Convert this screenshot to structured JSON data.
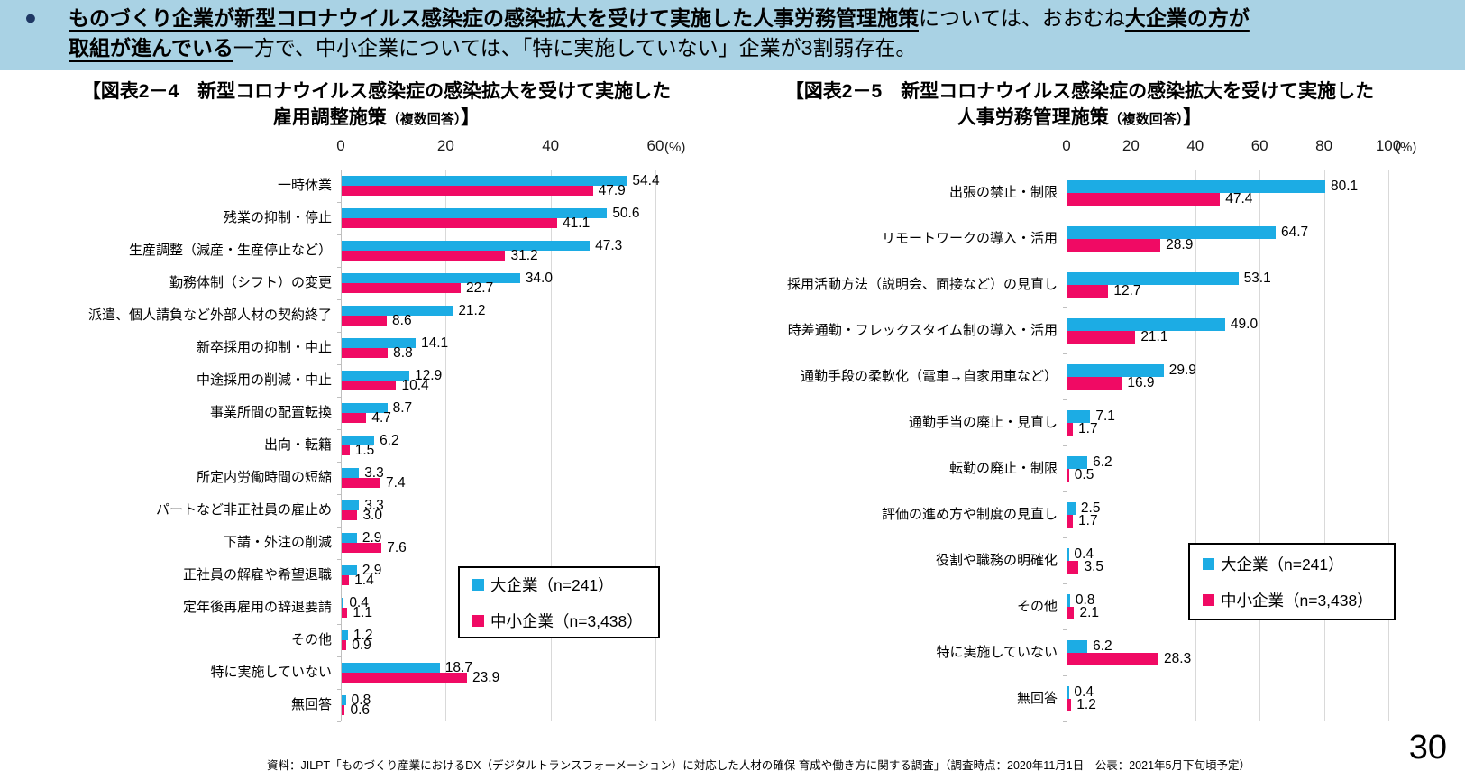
{
  "header": {
    "bullet": "●",
    "line1": [
      {
        "text": "ものづくり企業が新型コロナウイルス感染症の感染拡大を受けて実施した人事労務管理施策",
        "emphasis": true
      },
      {
        "text": "については、おおむね",
        "emphasis": false
      },
      {
        "text": "大企業の方が",
        "emphasis": true
      }
    ],
    "line2": [
      {
        "text": "取組が進んでいる",
        "emphasis": true
      },
      {
        "text": "一方で、中小企業については、「特に実施していない」企業が3割弱存在。",
        "emphasis": false
      }
    ]
  },
  "colors": {
    "banner_bg": "#A9D2E4",
    "bullet": "#1F3864",
    "large_series": "#1CACE4",
    "sme_series": "#F00A64",
    "gridline": "#D9D9D9",
    "axis": "#BFBFBF"
  },
  "legend": {
    "items": [
      {
        "label": "大企業（n=241）",
        "color_key": "large_series"
      },
      {
        "label": "中小企業（n=3,438）",
        "color_key": "sme_series"
      }
    ]
  },
  "chart_data": [
    {
      "type": "bar",
      "orientation": "horizontal",
      "title_line1": "【図表2－4　新型コロナウイルス感染症の感染拡大を受けて実施した",
      "title_line2_main": "雇用調整施策",
      "title_line2_note": "（複数回答）",
      "title_line2_close": "】",
      "unit_label": "(%)",
      "xlim": [
        0,
        60
      ],
      "xticks": [
        "0",
        "20",
        "40",
        "60"
      ],
      "grid": true,
      "legend_position": "inside-plot",
      "categories": [
        "一時休業",
        "残業の抑制・停止",
        "生産調整（減産・生産停止など）",
        "勤務体制（シフト）の変更",
        "派遣、個人請負など外部人材の契約終了",
        "新卒採用の抑制・中止",
        "中途採用の削減・中止",
        "事業所間の配置転換",
        "出向・転籍",
        "所定内労働時間の短縮",
        "パートなど非正社員の雇止め",
        "下請・外注の削減",
        "正社員の解雇や希望退職",
        "定年後再雇用の辞退要請",
        "その他",
        "特に実施していない",
        "無回答"
      ],
      "series": [
        {
          "name": "大企業（n=241）",
          "color_key": "large_series",
          "values": [
            54.4,
            50.6,
            47.3,
            34.0,
            21.2,
            14.1,
            12.9,
            8.7,
            6.2,
            3.3,
            3.3,
            2.9,
            2.9,
            0.4,
            1.2,
            18.7,
            0.8
          ]
        },
        {
          "name": "中小企業（n=3,438）",
          "color_key": "sme_series",
          "values": [
            47.9,
            41.1,
            31.2,
            22.7,
            8.6,
            8.8,
            10.4,
            4.7,
            1.5,
            7.4,
            3.0,
            7.6,
            1.4,
            1.1,
            0.9,
            23.9,
            0.6
          ]
        }
      ]
    },
    {
      "type": "bar",
      "orientation": "horizontal",
      "title_line1": "【図表2－5　新型コロナウイルス感染症の感染拡大を受けて実施した",
      "title_line2_main": "人事労務管理施策",
      "title_line2_note": "（複数回答）",
      "title_line2_close": "】",
      "unit_label": "(%)",
      "xlim": [
        0,
        100
      ],
      "xticks": [
        "0",
        "20",
        "40",
        "60",
        "80",
        "100"
      ],
      "grid": true,
      "legend_position": "inside-plot",
      "categories": [
        "出張の禁止・制限",
        "リモートワークの導入・活用",
        "採用活動方法（説明会、面接など）の見直し",
        "時差通勤・フレックスタイム制の導入・活用",
        "通勤手段の柔軟化（電車→自家用車など）",
        "通勤手当の廃止・見直し",
        "転勤の廃止・制限",
        "評価の進め方や制度の見直し",
        "役割や職務の明確化",
        "その他",
        "特に実施していない",
        "無回答"
      ],
      "series": [
        {
          "name": "大企業（n=241）",
          "color_key": "large_series",
          "values": [
            80.1,
            64.7,
            53.1,
            49.0,
            29.9,
            7.1,
            6.2,
            2.5,
            0.4,
            0.8,
            6.2,
            0.4
          ]
        },
        {
          "name": "中小企業（n=3,438）",
          "color_key": "sme_series",
          "values": [
            47.4,
            28.9,
            12.7,
            21.1,
            16.9,
            1.7,
            0.5,
            1.7,
            3.5,
            2.1,
            28.3,
            1.2
          ]
        }
      ]
    }
  ],
  "footer": {
    "source": "資料：JILPT「ものづくり産業におけるDX（デジタルトランスフォーメーション）に対応した人材の確保 育成や働き方に関する調査」（調査時点：2020年11月1日　公表：2021年5月下旬頃予定）",
    "page_number": "30"
  }
}
